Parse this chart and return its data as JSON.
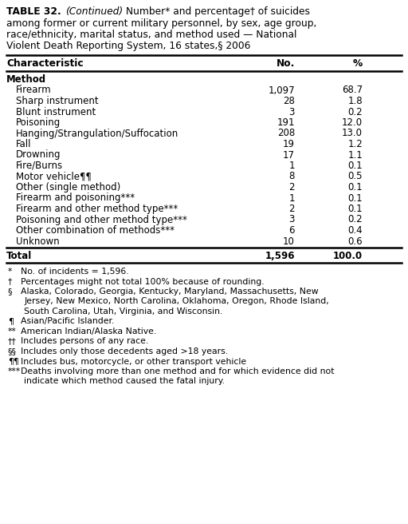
{
  "title_line1_bold": "TABLE 32.",
  "title_line1_italic": " (Continued)",
  "title_line1_rest": " Number* and percentage† of suicides",
  "title_line2": "among former or current military personnel, by sex, age group,",
  "title_line3": "race/ethnicity, marital status, and method used — National",
  "title_line4": "Violent Death Reporting System, 16 states,§ 2006",
  "col_headers": [
    "Characteristic",
    "No.",
    "%"
  ],
  "section": "Method",
  "rows": [
    [
      "Firearm",
      "1,097",
      "68.7"
    ],
    [
      "Sharp instrument",
      "28",
      "1.8"
    ],
    [
      "Blunt instrument",
      "3",
      "0.2"
    ],
    [
      "Poisoning",
      "191",
      "12.0"
    ],
    [
      "Hanging/Strangulation/Suffocation",
      "208",
      "13.0"
    ],
    [
      "Fall",
      "19",
      "1.2"
    ],
    [
      "Drowning",
      "17",
      "1.1"
    ],
    [
      "Fire/Burns",
      "1",
      "0.1"
    ],
    [
      "Motor vehicle¶¶",
      "8",
      "0.5"
    ],
    [
      "Other (single method)",
      "2",
      "0.1"
    ],
    [
      "Firearm and poisoning***",
      "1",
      "0.1"
    ],
    [
      "Firearm and other method type***",
      "2",
      "0.1"
    ],
    [
      "Poisoning and other method type***",
      "3",
      "0.2"
    ],
    [
      "Other combination of methods***",
      "6",
      "0.4"
    ],
    [
      "Unknown",
      "10",
      "0.6"
    ]
  ],
  "total_row": [
    "Total",
    "1,596",
    "100.0"
  ],
  "fn_items": [
    {
      "sym": "*",
      "text": "No. of incidents = 1,596.",
      "wrap": false
    },
    {
      "sym": "†",
      "text": "Percentages might not total 100% because of rounding.",
      "wrap": false
    },
    {
      "sym": "§",
      "text1": "Alaska, Colorado, Georgia, Kentucky, Maryland, Massachusetts, New",
      "text2": "Jersey, New Mexico, North Carolina, Oklahoma, Oregon, Rhode Island,",
      "text3": "South Carolina, Utah, Virginia, and Wisconsin.",
      "wrap": true
    },
    {
      "sym": "¶",
      "text": "Asian/Pacific Islander.",
      "wrap": false
    },
    {
      "sym": "**",
      "text": "American Indian/Alaska Native.",
      "wrap": false
    },
    {
      "sym": "††",
      "text": "Includes persons of any race.",
      "wrap": false
    },
    {
      "sym": "§§",
      "text": "Includes only those decedents aged >18 years.",
      "wrap": false
    },
    {
      "sym": "¶¶",
      "text": "Includes bus, motorcycle, or other transport vehicle",
      "wrap": false
    },
    {
      "sym": "***",
      "text1": "Deaths involving more than one method and for which evidence did not",
      "text2": "indicate which method caused the fatal injury.",
      "wrap": true
    }
  ],
  "bg_color": "#ffffff",
  "title_fs": 8.8,
  "header_fs": 8.8,
  "body_fs": 8.5,
  "fn_fs": 7.8
}
